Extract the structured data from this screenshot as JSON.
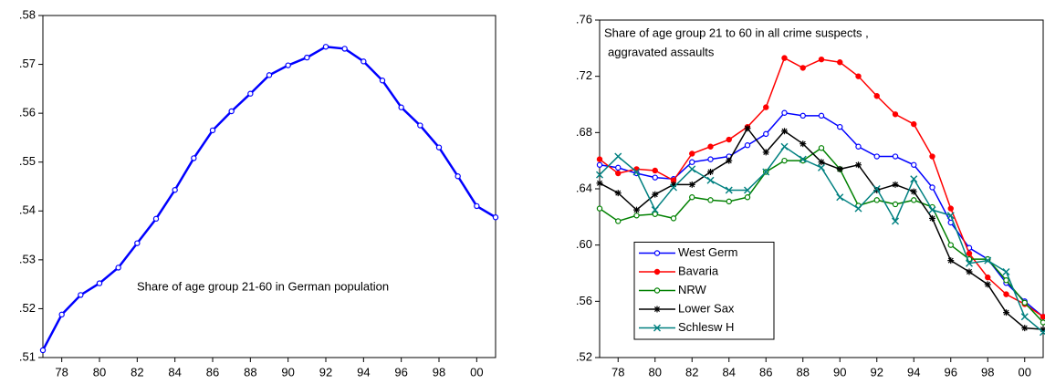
{
  "chart_data": [
    {
      "type": "line",
      "annotations": [
        "Share of age group 21-60 in German population"
      ],
      "x": [
        1977,
        1978,
        1979,
        1980,
        1981,
        1982,
        1983,
        1984,
        1985,
        1986,
        1987,
        1988,
        1989,
        1990,
        1991,
        1992,
        1993,
        1994,
        1995,
        1996,
        1997,
        1998,
        1999,
        2000,
        2001
      ],
      "series": [
        {
          "color": "#0000ff",
          "marker": "circle-open",
          "values": [
            0.5115,
            0.5188,
            0.5228,
            0.5252,
            0.5284,
            0.5334,
            0.5384,
            0.5443,
            0.5508,
            0.5565,
            0.5604,
            0.564,
            0.5678,
            0.5698,
            0.5714,
            0.5736,
            0.5732,
            0.5706,
            0.5667,
            0.5612,
            0.5575,
            0.553,
            0.5471,
            0.541,
            0.5387
          ]
        }
      ],
      "xlim": [
        1977,
        2001
      ],
      "xticks": [
        {
          "value": 1978,
          "label": "78"
        },
        {
          "value": 1980,
          "label": "80"
        },
        {
          "value": 1982,
          "label": "82"
        },
        {
          "value": 1984,
          "label": "84"
        },
        {
          "value": 1986,
          "label": "86"
        },
        {
          "value": 1988,
          "label": "88"
        },
        {
          "value": 1990,
          "label": "90"
        },
        {
          "value": 1992,
          "label": "92"
        },
        {
          "value": 1994,
          "label": "94"
        },
        {
          "value": 1996,
          "label": "96"
        },
        {
          "value": 1998,
          "label": "98"
        },
        {
          "value": 2000,
          "label": "00"
        }
      ],
      "ylim": [
        0.51,
        0.58
      ],
      "yticks": [
        {
          "value": 0.51,
          "label": ".51"
        },
        {
          "value": 0.52,
          "label": ".52"
        },
        {
          "value": 0.53,
          "label": ".53"
        },
        {
          "value": 0.54,
          "label": ".54"
        },
        {
          "value": 0.55,
          "label": ".55"
        },
        {
          "value": 0.56,
          "label": ".56"
        },
        {
          "value": 0.57,
          "label": ".57"
        },
        {
          "value": 0.58,
          "label": ".58"
        }
      ]
    },
    {
      "type": "line",
      "annotations": [
        "Share of age group 21 to 60 in all crime suspects ,",
        "aggravated assaults"
      ],
      "legend": "lower left",
      "x": [
        1977,
        1978,
        1979,
        1980,
        1981,
        1982,
        1983,
        1984,
        1985,
        1986,
        1987,
        1988,
        1989,
        1990,
        1991,
        1992,
        1993,
        1994,
        1995,
        1996,
        1997,
        1998,
        1999,
        2000,
        2001
      ],
      "series": [
        {
          "name": "West Germ",
          "color": "#0000ff",
          "marker": "circle-open",
          "values": [
            0.657,
            0.655,
            0.651,
            0.648,
            0.647,
            0.659,
            0.661,
            0.663,
            0.671,
            0.679,
            0.694,
            0.692,
            0.692,
            0.684,
            0.67,
            0.663,
            0.663,
            0.657,
            0.641,
            0.616,
            0.598,
            0.59,
            0.573,
            0.56,
            0.549
          ]
        },
        {
          "name": "Bavaria",
          "color": "#ff0000",
          "marker": "circle",
          "values": [
            0.661,
            0.651,
            0.654,
            0.653,
            0.646,
            0.665,
            0.67,
            0.675,
            0.684,
            0.698,
            0.733,
            0.726,
            0.732,
            0.73,
            0.72,
            0.706,
            0.693,
            0.686,
            0.663,
            0.626,
            0.594,
            0.577,
            0.565,
            0.558,
            0.549
          ]
        },
        {
          "name": "NRW",
          "color": "#008000",
          "marker": "circle-open",
          "values": [
            0.626,
            0.617,
            0.621,
            0.622,
            0.619,
            0.634,
            0.632,
            0.631,
            0.634,
            0.652,
            0.66,
            0.66,
            0.669,
            0.654,
            0.628,
            0.632,
            0.629,
            0.632,
            0.627,
            0.6,
            0.59,
            0.59,
            0.575,
            0.559,
            0.545
          ]
        },
        {
          "name": "Lower Sax",
          "color": "#000000",
          "marker": "star",
          "values": [
            0.644,
            0.637,
            0.625,
            0.636,
            0.643,
            0.643,
            0.652,
            0.66,
            0.683,
            0.666,
            0.681,
            0.672,
            0.659,
            0.654,
            0.657,
            0.639,
            0.643,
            0.638,
            0.619,
            0.589,
            0.581,
            0.572,
            0.552,
            0.541,
            0.54
          ]
        },
        {
          "name": "Schlesw H",
          "color": "#008080",
          "marker": "x",
          "values": [
            0.65,
            0.663,
            0.652,
            0.625,
            0.641,
            0.654,
            0.646,
            0.639,
            0.639,
            0.652,
            0.67,
            0.661,
            0.655,
            0.634,
            0.626,
            0.64,
            0.617,
            0.647,
            0.625,
            0.621,
            0.587,
            0.589,
            0.581,
            0.549,
            0.538
          ]
        }
      ],
      "xlim": [
        1977,
        2001
      ],
      "xticks": [
        {
          "value": 1978,
          "label": "78"
        },
        {
          "value": 1980,
          "label": "80"
        },
        {
          "value": 1982,
          "label": "82"
        },
        {
          "value": 1984,
          "label": "84"
        },
        {
          "value": 1986,
          "label": "86"
        },
        {
          "value": 1988,
          "label": "88"
        },
        {
          "value": 1990,
          "label": "90"
        },
        {
          "value": 1992,
          "label": "92"
        },
        {
          "value": 1994,
          "label": "94"
        },
        {
          "value": 1996,
          "label": "96"
        },
        {
          "value": 1998,
          "label": "98"
        },
        {
          "value": 2000,
          "label": "00"
        }
      ],
      "ylim": [
        0.52,
        0.76
      ],
      "yticks": [
        {
          "value": 0.52,
          "label": ".52"
        },
        {
          "value": 0.56,
          "label": ".56"
        },
        {
          "value": 0.6,
          "label": ".60"
        },
        {
          "value": 0.64,
          "label": ".64"
        },
        {
          "value": 0.68,
          "label": ".68"
        },
        {
          "value": 0.72,
          "label": ".72"
        },
        {
          "value": 0.76,
          "label": ".76"
        }
      ]
    }
  ]
}
